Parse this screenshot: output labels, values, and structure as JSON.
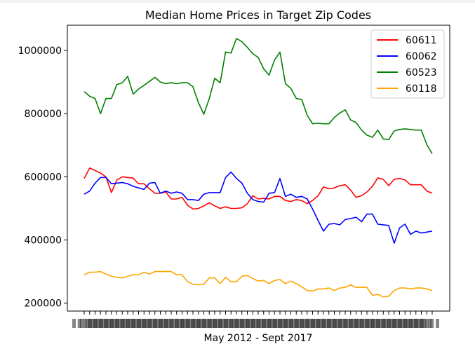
{
  "chart_data": {
    "type": "line",
    "title": "Median Home Prices in Target Zip Codes",
    "xlabel": "May 2012 - Sept 2017",
    "ylabel": "",
    "ylim": [
      175000,
      1080000
    ],
    "yticks": [
      200000,
      400000,
      600000,
      800000,
      1000000
    ],
    "ytick_labels": [
      "200000",
      "400000",
      "600000",
      "800000",
      "1000000"
    ],
    "xtick_labels_note": "x tick labels are overlapping and illegible in the original",
    "grid": false,
    "legend_position": "top-right",
    "series": [
      {
        "name": "60611",
        "color": "#ff0000",
        "values": [
          595000,
          628000,
          620000,
          612000,
          600000,
          550000,
          590000,
          600000,
          598000,
          596000,
          578000,
          578000,
          562000,
          548000,
          548000,
          552000,
          530000,
          530000,
          535000,
          510000,
          498000,
          500000,
          508000,
          518000,
          508000,
          500000,
          505000,
          500000,
          500000,
          502000,
          515000,
          540000,
          530000,
          532000,
          530000,
          538000,
          538000,
          525000,
          522000,
          528000,
          525000,
          515000,
          525000,
          540000,
          568000,
          562000,
          565000,
          572000,
          575000,
          558000,
          535000,
          540000,
          552000,
          570000,
          597000,
          592000,
          572000,
          592000,
          595000,
          590000,
          575000,
          575000,
          575000,
          555000,
          548000
        ]
      },
      {
        "name": "60062",
        "color": "#0000ff",
        "values": [
          545000,
          555000,
          580000,
          598000,
          598000,
          578000,
          580000,
          582000,
          578000,
          570000,
          565000,
          560000,
          580000,
          582000,
          548000,
          555000,
          548000,
          552000,
          548000,
          528000,
          528000,
          525000,
          545000,
          550000,
          550000,
          550000,
          598000,
          615000,
          595000,
          580000,
          548000,
          528000,
          522000,
          520000,
          548000,
          550000,
          595000,
          538000,
          545000,
          535000,
          538000,
          530000,
          498000,
          462000,
          428000,
          450000,
          452000,
          448000,
          465000,
          468000,
          472000,
          458000,
          482000,
          482000,
          450000,
          448000,
          446000,
          390000,
          438000,
          450000,
          418000,
          428000,
          422000,
          425000,
          428000
        ]
      },
      {
        "name": "60523",
        "color": "#008000",
        "values": [
          870000,
          855000,
          848000,
          800000,
          848000,
          848000,
          892000,
          898000,
          918000,
          862000,
          878000,
          890000,
          902000,
          915000,
          900000,
          895000,
          898000,
          895000,
          898000,
          898000,
          885000,
          835000,
          798000,
          848000,
          912000,
          898000,
          995000,
          992000,
          1038000,
          1028000,
          1010000,
          990000,
          978000,
          942000,
          922000,
          970000,
          995000,
          895000,
          880000,
          848000,
          845000,
          795000,
          768000,
          770000,
          768000,
          768000,
          788000,
          802000,
          812000,
          780000,
          772000,
          748000,
          732000,
          725000,
          748000,
          720000,
          718000,
          745000,
          750000,
          752000,
          750000,
          748000,
          748000,
          702000,
          673000
        ]
      },
      {
        "name": "60118",
        "color": "#ffa500",
        "values": [
          290000,
          298000,
          298000,
          300000,
          292000,
          285000,
          282000,
          280000,
          285000,
          290000,
          290000,
          298000,
          292000,
          300000,
          300000,
          300000,
          300000,
          290000,
          290000,
          268000,
          260000,
          258000,
          260000,
          280000,
          280000,
          262000,
          282000,
          268000,
          268000,
          285000,
          288000,
          278000,
          270000,
          272000,
          262000,
          272000,
          275000,
          262000,
          270000,
          262000,
          252000,
          240000,
          238000,
          245000,
          245000,
          248000,
          240000,
          248000,
          250000,
          258000,
          250000,
          250000,
          250000,
          225000,
          228000,
          220000,
          222000,
          240000,
          248000,
          248000,
          245000,
          248000,
          248000,
          245000,
          240000
        ]
      }
    ]
  }
}
